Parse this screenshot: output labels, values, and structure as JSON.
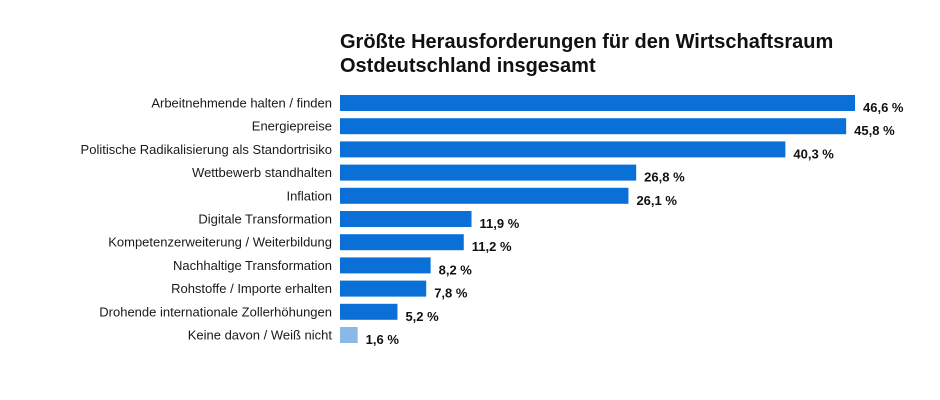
{
  "chart_data": {
    "type": "bar",
    "orientation": "horizontal",
    "title_lines": [
      "Größte Herausforderungen für den Wirtschaftsraum",
      "Ostdeutschland insgesamt"
    ],
    "categories": [
      "Arbeitnehmende halten / finden",
      "Energiepreise",
      "Politische Radikalisierung als Standortrisiko",
      "Wettbewerb standhalten",
      "Inflation",
      "Digitale Transformation",
      "Kompetenzerweiterung / Weiterbildung",
      "Nachhaltige Transformation",
      "Rohstoffe / Importe erhalten",
      "Drohende internationale Zollerhöhungen",
      "Keine davon / Weiß nicht"
    ],
    "values": [
      46.6,
      45.8,
      40.3,
      26.8,
      26.1,
      11.9,
      11.2,
      8.2,
      7.8,
      5.2,
      1.6
    ],
    "value_labels": [
      "46,6 %",
      "45,8 %",
      "40,3 %",
      "26,8 %",
      "26,1 %",
      "11,9 %",
      "11,2 %",
      "8,2 %",
      "7,8 %",
      "5,2 %",
      "1,6 %"
    ],
    "xlim": [
      0,
      46.6
    ],
    "grid": false,
    "legend": "none",
    "colors": {
      "bar": "#0a70d8",
      "bar_muted": "#8ab8e8",
      "text": "#1a1a1a"
    },
    "muted_categories": [
      "Keine davon / Weiß nicht"
    ]
  }
}
